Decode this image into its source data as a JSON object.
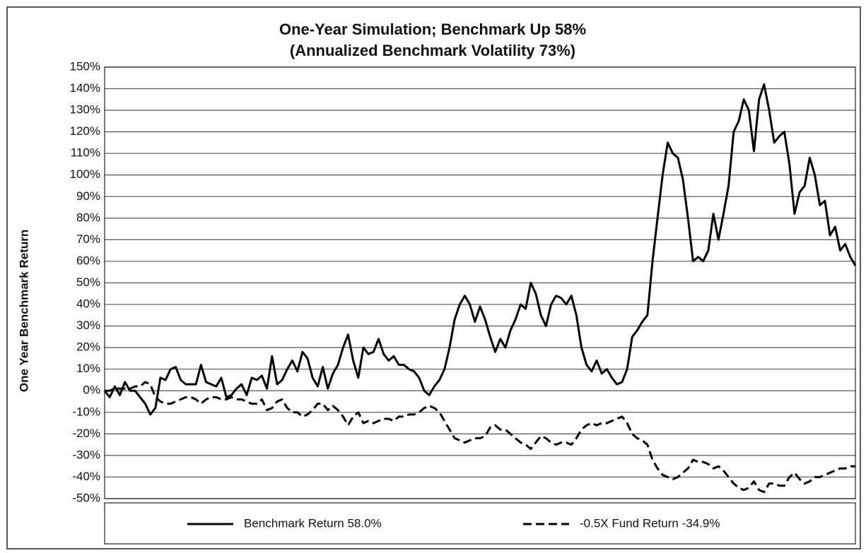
{
  "chart_data": {
    "type": "line",
    "title": "One-Year Simulation; Benchmark Up 58%",
    "subtitle": "(Annualized Benchmark Volatility 73%)",
    "y_label": "One Year Benchmark Return",
    "ylim": [
      -50,
      150
    ],
    "yticks": [
      {
        "value": -50,
        "label": "-50%"
      },
      {
        "value": -40,
        "label": "-40%"
      },
      {
        "value": -30,
        "label": "-30%"
      },
      {
        "value": -20,
        "label": "-20%"
      },
      {
        "value": -10,
        "label": "-10%"
      },
      {
        "value": 0,
        "label": "0%"
      },
      {
        "value": 10,
        "label": "10%"
      },
      {
        "value": 20,
        "label": "20%"
      },
      {
        "value": 30,
        "label": "30%"
      },
      {
        "value": 40,
        "label": "40%"
      },
      {
        "value": 50,
        "label": "50%"
      },
      {
        "value": 60,
        "label": "60%"
      },
      {
        "value": 70,
        "label": "70%"
      },
      {
        "value": 80,
        "label": "80%"
      },
      {
        "value": 90,
        "label": "90%"
      },
      {
        "value": 100,
        "label": "100%"
      },
      {
        "value": 110,
        "label": "110%"
      },
      {
        "value": 120,
        "label": "120%"
      },
      {
        "value": 130,
        "label": "130%"
      },
      {
        "value": 140,
        "label": "140%"
      },
      {
        "value": 150,
        "label": "150%"
      }
    ],
    "grid": true,
    "legend": "bottom",
    "series": [
      {
        "name": "Benchmark Return 58.0%",
        "color": "#000000",
        "dash": "solid",
        "values": [
          0,
          -3,
          2,
          -2,
          4,
          0,
          0,
          -3,
          -6,
          -11,
          -8,
          6,
          5,
          10,
          11,
          5,
          3,
          3,
          3,
          12,
          4,
          3,
          2,
          6,
          -3,
          -2,
          1,
          3,
          -2,
          6,
          5,
          7,
          1,
          16,
          3,
          5,
          10,
          14,
          9,
          18,
          15,
          6,
          2,
          11,
          1,
          8,
          12,
          20,
          26,
          14,
          6,
          20,
          17,
          18,
          24,
          17,
          14,
          16,
          12,
          12,
          10,
          9,
          6,
          0,
          -2,
          2,
          5,
          10,
          20,
          33,
          40,
          44,
          40,
          32,
          39,
          33,
          25,
          18,
          24,
          20,
          28,
          33,
          40,
          38,
          50,
          45,
          35,
          30,
          40,
          44,
          43,
          40,
          44,
          35,
          20,
          12,
          9,
          14,
          8,
          10,
          6,
          3,
          4,
          10,
          25,
          28,
          32,
          35,
          60,
          80,
          100,
          115,
          110,
          108,
          98,
          80,
          60,
          62,
          60,
          65,
          82,
          70,
          82,
          95,
          120,
          125,
          135,
          130,
          111,
          135,
          142,
          130,
          115,
          118,
          120,
          105,
          82,
          92,
          95,
          108,
          100,
          86,
          88,
          72,
          76,
          65,
          68,
          62,
          58
        ]
      },
      {
        "name": "-0.5X Fund Return -34.9%",
        "color": "#000000",
        "dash": "dashed",
        "values": [
          0,
          0,
          1,
          1,
          1,
          1,
          2,
          2,
          4,
          3,
          -3,
          -5,
          -6,
          -6,
          -5,
          -4,
          -3,
          -3,
          -4,
          -6,
          -4,
          -3,
          -3,
          -4,
          -4,
          -3,
          -4,
          -4,
          -5,
          -6,
          -6,
          -4,
          -9,
          -8,
          -5,
          -4,
          -8,
          -10,
          -10,
          -12,
          -11,
          -9,
          -6,
          -6,
          -9,
          -7,
          -9,
          -12,
          -16,
          -12,
          -10,
          -15,
          -14,
          -15,
          -14,
          -13,
          -13,
          -14,
          -12,
          -12,
          -11,
          -11,
          -10,
          -8,
          -7,
          -8,
          -10,
          -14,
          -18,
          -22,
          -23,
          -24,
          -23,
          -22,
          -22,
          -21,
          -17,
          -16,
          -18,
          -18,
          -20,
          -22,
          -24,
          -25,
          -27,
          -24,
          -21,
          -22,
          -24,
          -25,
          -24,
          -24,
          -25,
          -22,
          -18,
          -16,
          -15,
          -16,
          -15,
          -15,
          -14,
          -13,
          -12,
          -15,
          -20,
          -22,
          -23,
          -25,
          -32,
          -36,
          -39,
          -40,
          -41,
          -40,
          -38,
          -36,
          -32,
          -33,
          -33,
          -34,
          -36,
          -35,
          -37,
          -40,
          -43,
          -45,
          -46,
          -45,
          -42,
          -46,
          -47,
          -43,
          -43,
          -44,
          -44,
          -40,
          -38,
          -41,
          -43,
          -42,
          -40,
          -40,
          -39,
          -38,
          -37,
          -36,
          -36,
          -35,
          -35
        ]
      }
    ]
  }
}
